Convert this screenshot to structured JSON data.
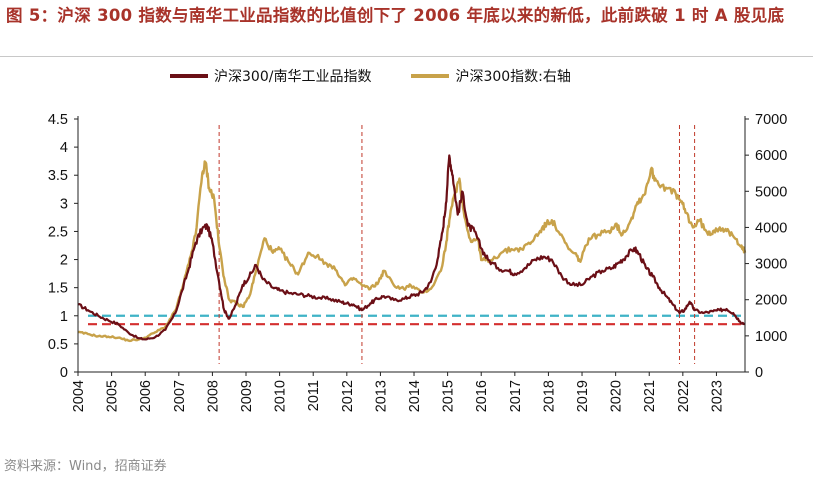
{
  "title": "图 5：沪深 300 指数与南华工业品指数的比值创下了 2006 年底以来的新低，此前跌破 1 时 A 股见底",
  "source": "资料来源：Wind，招商证券",
  "chart_data": {
    "type": "line",
    "legend_placement": "top-center",
    "grid": false,
    "x_ticks": [
      "2004",
      "2005",
      "2006",
      "2007",
      "2008",
      "2009",
      "2010",
      "2011",
      "2012",
      "2013",
      "2014",
      "2015",
      "2016",
      "2017",
      "2018",
      "2019",
      "2020",
      "2021",
      "2022",
      "2023"
    ],
    "xlim": [
      2004.0,
      2023.85
    ],
    "y_left": {
      "ticks": [
        "0",
        "0.5",
        "1",
        "1.5",
        "2",
        "2.5",
        "3",
        "3.5",
        "4",
        "4.5"
      ],
      "ylim": [
        0,
        4.5
      ]
    },
    "y_right": {
      "ticks": [
        "0",
        "1000",
        "2000",
        "3000",
        "4000",
        "5000",
        "6000",
        "7000"
      ],
      "ylim": [
        0,
        7000
      ]
    },
    "series": [
      {
        "name": "沪深300/南华工业品指数",
        "axis": "left",
        "color": "#6b0f16",
        "points": [
          [
            2004.0,
            1.2
          ],
          [
            2004.3,
            1.1
          ],
          [
            2004.6,
            1.0
          ],
          [
            2004.9,
            0.92
          ],
          [
            2005.2,
            0.85
          ],
          [
            2005.5,
            0.7
          ],
          [
            2005.8,
            0.6
          ],
          [
            2006.0,
            0.58
          ],
          [
            2006.3,
            0.62
          ],
          [
            2006.6,
            0.75
          ],
          [
            2006.9,
            1.05
          ],
          [
            2007.1,
            1.45
          ],
          [
            2007.3,
            1.85
          ],
          [
            2007.5,
            2.3
          ],
          [
            2007.7,
            2.55
          ],
          [
            2007.85,
            2.6
          ],
          [
            2008.0,
            2.3
          ],
          [
            2008.2,
            1.6
          ],
          [
            2008.35,
            1.1
          ],
          [
            2008.5,
            0.95
          ],
          [
            2008.7,
            1.2
          ],
          [
            2008.9,
            1.55
          ],
          [
            2009.1,
            1.7
          ],
          [
            2009.3,
            1.9
          ],
          [
            2009.5,
            1.65
          ],
          [
            2009.8,
            1.5
          ],
          [
            2010.0,
            1.45
          ],
          [
            2010.3,
            1.4
          ],
          [
            2010.6,
            1.38
          ],
          [
            2010.9,
            1.35
          ],
          [
            2011.2,
            1.32
          ],
          [
            2011.5,
            1.3
          ],
          [
            2011.8,
            1.25
          ],
          [
            2012.0,
            1.22
          ],
          [
            2012.2,
            1.2
          ],
          [
            2012.45,
            1.1
          ],
          [
            2012.7,
            1.22
          ],
          [
            2012.9,
            1.3
          ],
          [
            2013.1,
            1.35
          ],
          [
            2013.4,
            1.28
          ],
          [
            2013.7,
            1.3
          ],
          [
            2013.9,
            1.35
          ],
          [
            2014.1,
            1.38
          ],
          [
            2014.3,
            1.45
          ],
          [
            2014.5,
            1.6
          ],
          [
            2014.7,
            2.0
          ],
          [
            2014.85,
            2.5
          ],
          [
            2014.95,
            3.0
          ],
          [
            2015.05,
            3.85
          ],
          [
            2015.15,
            3.5
          ],
          [
            2015.3,
            2.8
          ],
          [
            2015.45,
            3.2
          ],
          [
            2015.6,
            2.6
          ],
          [
            2015.8,
            2.5
          ],
          [
            2016.0,
            2.2
          ],
          [
            2016.2,
            2.0
          ],
          [
            2016.5,
            1.85
          ],
          [
            2016.8,
            1.8
          ],
          [
            2017.0,
            1.75
          ],
          [
            2017.3,
            1.85
          ],
          [
            2017.6,
            2.0
          ],
          [
            2017.85,
            2.05
          ],
          [
            2018.1,
            2.0
          ],
          [
            2018.4,
            1.7
          ],
          [
            2018.7,
            1.55
          ],
          [
            2019.0,
            1.55
          ],
          [
            2019.3,
            1.7
          ],
          [
            2019.6,
            1.8
          ],
          [
            2019.9,
            1.85
          ],
          [
            2020.1,
            1.95
          ],
          [
            2020.3,
            2.05
          ],
          [
            2020.55,
            2.2
          ],
          [
            2020.7,
            2.1
          ],
          [
            2020.9,
            1.85
          ],
          [
            2021.1,
            1.7
          ],
          [
            2021.3,
            1.5
          ],
          [
            2021.5,
            1.35
          ],
          [
            2021.7,
            1.2
          ],
          [
            2021.9,
            1.05
          ],
          [
            2022.05,
            1.1
          ],
          [
            2022.2,
            1.25
          ],
          [
            2022.35,
            1.1
          ],
          [
            2022.6,
            1.05
          ],
          [
            2022.9,
            1.08
          ],
          [
            2023.1,
            1.1
          ],
          [
            2023.3,
            1.12
          ],
          [
            2023.5,
            1.05
          ],
          [
            2023.7,
            0.9
          ],
          [
            2023.85,
            0.85
          ]
        ]
      },
      {
        "name": "沪深300指数:右轴",
        "axis": "right",
        "color": "#c8a24a",
        "points": [
          [
            2004.0,
            1100
          ],
          [
            2004.3,
            1050
          ],
          [
            2004.6,
            990
          ],
          [
            2004.9,
            980
          ],
          [
            2005.2,
            950
          ],
          [
            2005.5,
            870
          ],
          [
            2005.8,
            900
          ],
          [
            2006.0,
            950
          ],
          [
            2006.3,
            1100
          ],
          [
            2006.6,
            1250
          ],
          [
            2006.9,
            1700
          ],
          [
            2007.1,
            2300
          ],
          [
            2007.3,
            3000
          ],
          [
            2007.5,
            3800
          ],
          [
            2007.7,
            5500
          ],
          [
            2007.8,
            5800
          ],
          [
            2007.9,
            5100
          ],
          [
            2008.05,
            4800
          ],
          [
            2008.2,
            3500
          ],
          [
            2008.35,
            2600
          ],
          [
            2008.5,
            2000
          ],
          [
            2008.7,
            1900
          ],
          [
            2008.9,
            1800
          ],
          [
            2009.1,
            2100
          ],
          [
            2009.3,
            2800
          ],
          [
            2009.55,
            3700
          ],
          [
            2009.8,
            3300
          ],
          [
            2010.0,
            3400
          ],
          [
            2010.3,
            3000
          ],
          [
            2010.55,
            2700
          ],
          [
            2010.85,
            3300
          ],
          [
            2011.1,
            3200
          ],
          [
            2011.4,
            3000
          ],
          [
            2011.7,
            2800
          ],
          [
            2011.95,
            2400
          ],
          [
            2012.2,
            2600
          ],
          [
            2012.45,
            2400
          ],
          [
            2012.7,
            2300
          ],
          [
            2012.95,
            2500
          ],
          [
            2013.1,
            2800
          ],
          [
            2013.4,
            2400
          ],
          [
            2013.7,
            2300
          ],
          [
            2013.9,
            2400
          ],
          [
            2014.2,
            2200
          ],
          [
            2014.5,
            2300
          ],
          [
            2014.8,
            2800
          ],
          [
            2014.95,
            3500
          ],
          [
            2015.05,
            4200
          ],
          [
            2015.2,
            4900
          ],
          [
            2015.35,
            5350
          ],
          [
            2015.5,
            4300
          ],
          [
            2015.7,
            3600
          ],
          [
            2015.9,
            3700
          ],
          [
            2016.0,
            3100
          ],
          [
            2016.3,
            3100
          ],
          [
            2016.6,
            3300
          ],
          [
            2016.9,
            3400
          ],
          [
            2017.2,
            3400
          ],
          [
            2017.5,
            3600
          ],
          [
            2017.75,
            3900
          ],
          [
            2017.95,
            4100
          ],
          [
            2018.1,
            4200
          ],
          [
            2018.35,
            3800
          ],
          [
            2018.6,
            3400
          ],
          [
            2018.85,
            3200
          ],
          [
            2018.95,
            3050
          ],
          [
            2019.2,
            3700
          ],
          [
            2019.5,
            3800
          ],
          [
            2019.8,
            3900
          ],
          [
            2020.0,
            4100
          ],
          [
            2020.2,
            3800
          ],
          [
            2020.45,
            4200
          ],
          [
            2020.65,
            4700
          ],
          [
            2020.85,
            4900
          ],
          [
            2021.05,
            5600
          ],
          [
            2021.2,
            5300
          ],
          [
            2021.5,
            5100
          ],
          [
            2021.8,
            4900
          ],
          [
            2021.95,
            4700
          ],
          [
            2022.1,
            4400
          ],
          [
            2022.3,
            4000
          ],
          [
            2022.5,
            4200
          ],
          [
            2022.75,
            3800
          ],
          [
            2022.9,
            3900
          ],
          [
            2023.1,
            4000
          ],
          [
            2023.3,
            3900
          ],
          [
            2023.55,
            3700
          ],
          [
            2023.75,
            3500
          ],
          [
            2023.85,
            3300
          ]
        ]
      }
    ],
    "reference_lines": [
      {
        "type": "horizontal",
        "axis": "left",
        "value": 1.0,
        "color": "#3fb3c6"
      },
      {
        "type": "horizontal",
        "axis": "left",
        "value": 0.85,
        "color": "#d42f2f"
      },
      {
        "type": "vertical",
        "x": 2008.2,
        "color": "#c0392b"
      },
      {
        "type": "vertical",
        "x": 2012.45,
        "color": "#c0392b"
      },
      {
        "type": "vertical",
        "x": 2021.9,
        "color": "#c0392b"
      },
      {
        "type": "vertical",
        "x": 2022.35,
        "color": "#c0392b"
      }
    ]
  }
}
